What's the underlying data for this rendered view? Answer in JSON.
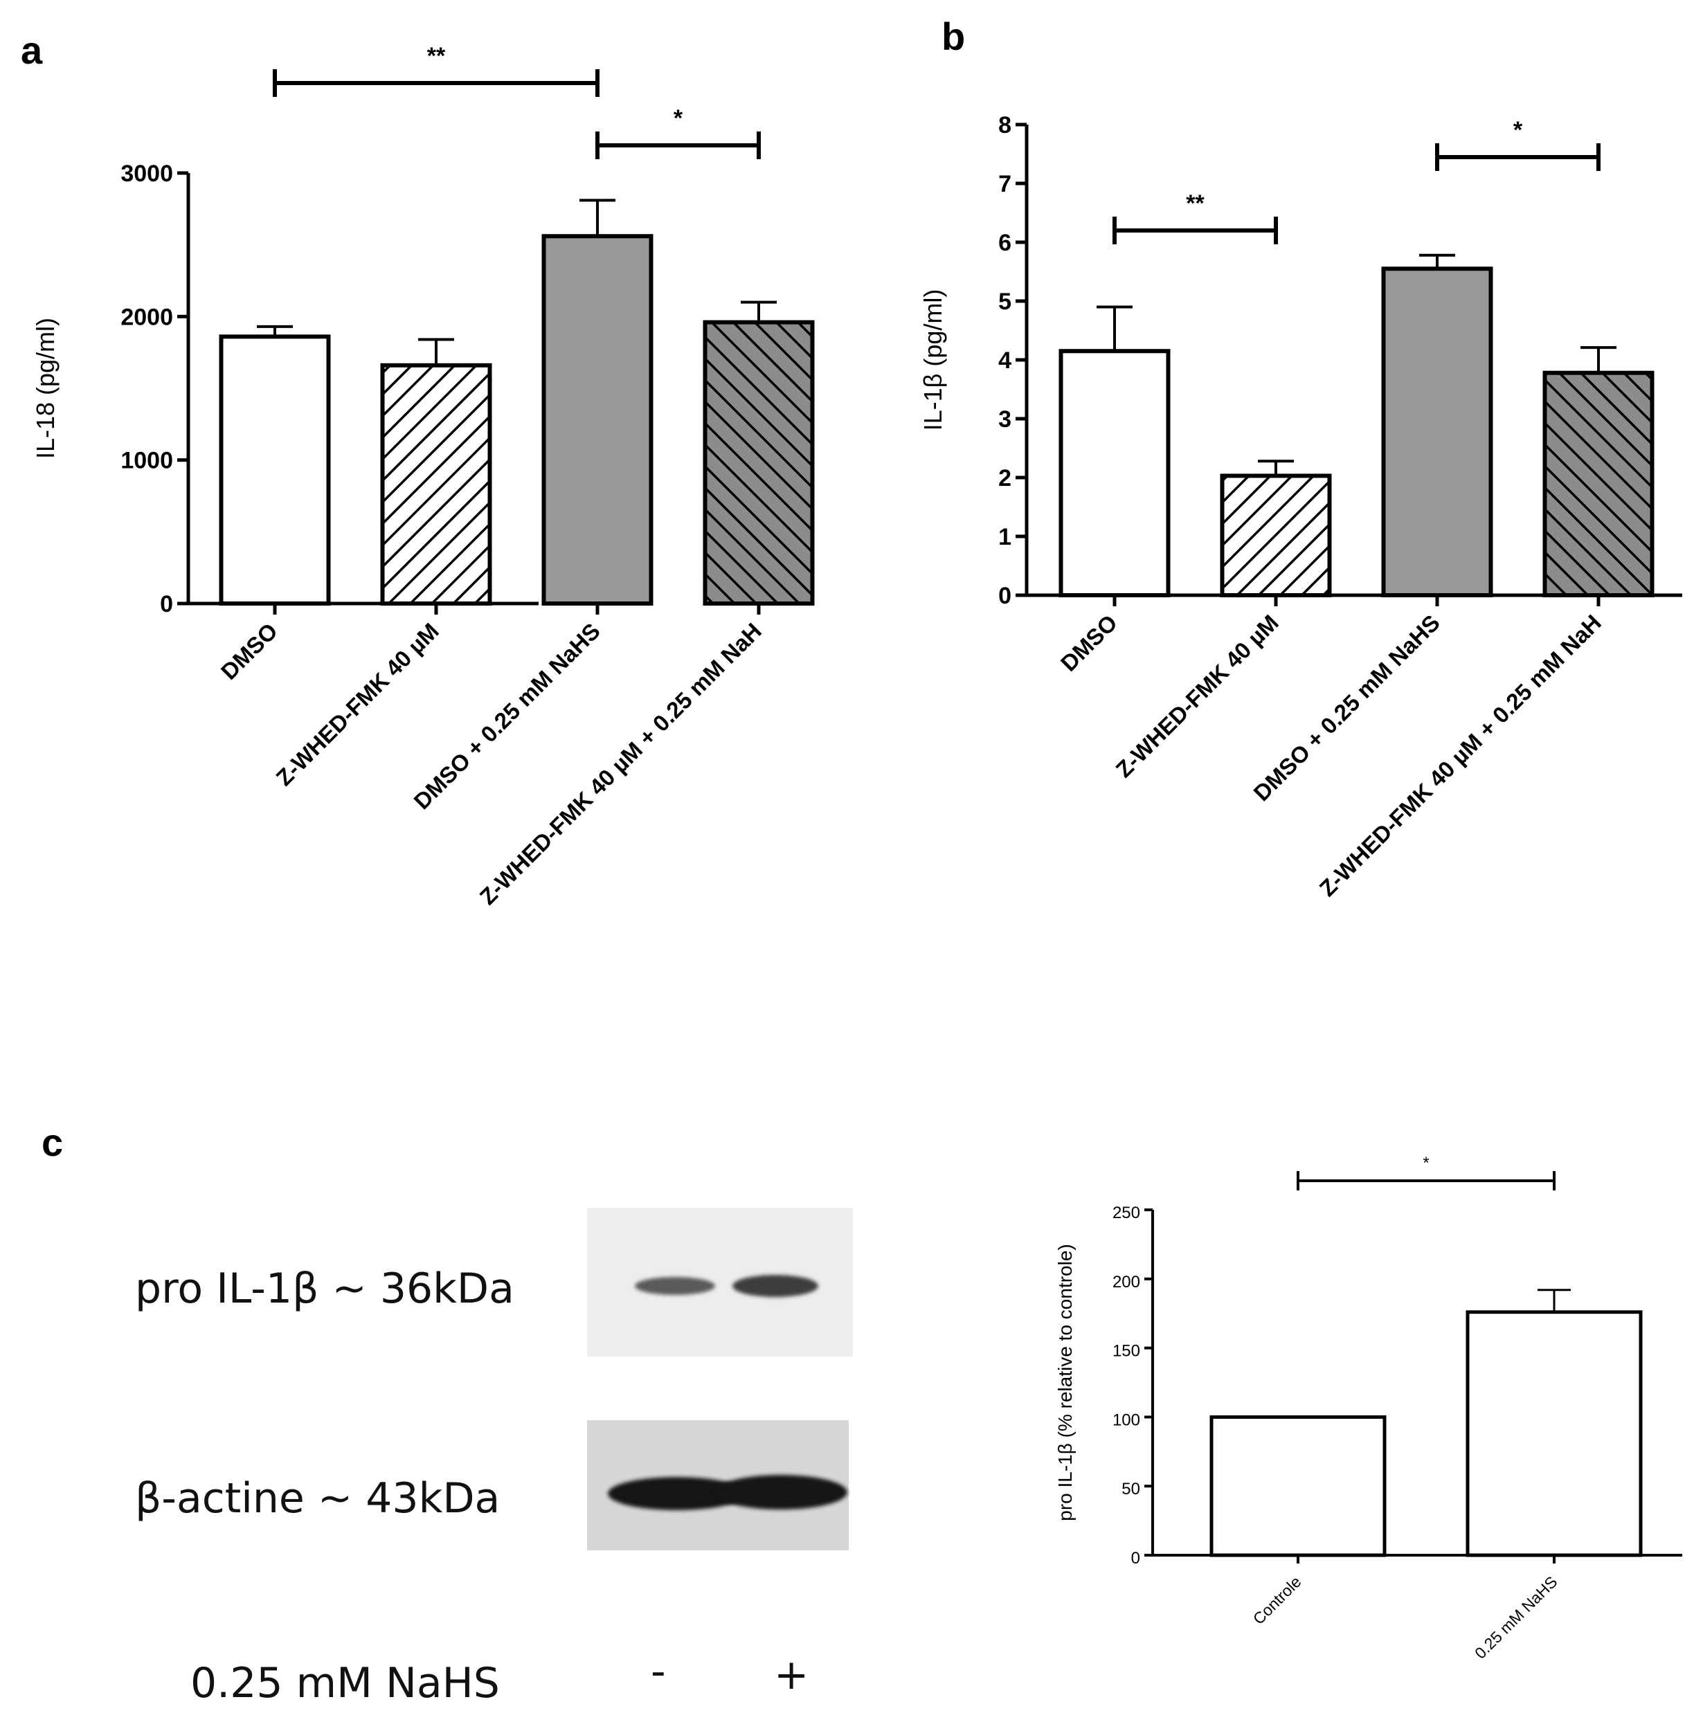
{
  "panels": {
    "a": "a",
    "b": "b",
    "c": "c"
  },
  "chart_data": [
    {
      "id": "a",
      "type": "bar",
      "ylabel": "IL-18 (pg/ml)",
      "ylim": [
        0,
        3000
      ],
      "yticks": [
        0,
        1000,
        2000,
        3000
      ],
      "categories": [
        "DMSO",
        "Z-WHED-FMK 40 µM",
        "DMSO + 0.25 mM NaHS",
        "Z-WHED-FMK 40 µM + 0.25 mM NaH"
      ],
      "values": [
        1860,
        1660,
        2560,
        1960
      ],
      "errors": [
        70,
        180,
        250,
        140
      ],
      "fills": [
        "white",
        "hatch-back",
        "#999999",
        "hatch-forward-dark"
      ],
      "significance": [
        {
          "from": 0,
          "to": 2,
          "label": "**"
        },
        {
          "from": 2,
          "to": 3,
          "label": "*"
        }
      ]
    },
    {
      "id": "b",
      "type": "bar",
      "ylabel": "IL-1β (pg/ml)",
      "ylim": [
        0,
        8
      ],
      "yticks": [
        0,
        1,
        2,
        3,
        4,
        5,
        6,
        7,
        8
      ],
      "categories": [
        "DMSO",
        "Z-WHED-FMK 40 µM",
        "DMSO + 0.25 mM NaHS",
        "Z-WHED-FMK 40 µM + 0.25 mM NaH"
      ],
      "values": [
        4.15,
        2.03,
        5.55,
        3.78
      ],
      "errors": [
        0.75,
        0.25,
        0.23,
        0.43
      ],
      "fills": [
        "white",
        "hatch-back",
        "#999999",
        "hatch-forward-dark"
      ],
      "significance": [
        {
          "from": 0,
          "to": 1,
          "label": "**"
        },
        {
          "from": 2,
          "to": 3,
          "label": "*"
        }
      ]
    },
    {
      "id": "c",
      "type": "bar",
      "ylabel": "pro IL-1β (% relative to controle)",
      "ylim": [
        0,
        250
      ],
      "yticks": [
        0,
        50,
        100,
        150,
        200,
        250
      ],
      "categories": [
        "Controle",
        "0.25 mM NaHS"
      ],
      "values": [
        100,
        176
      ],
      "errors": [
        0,
        16
      ],
      "fills": [
        "white",
        "white"
      ],
      "significance": [
        {
          "from": 0,
          "to": 1,
          "label": "*"
        }
      ]
    }
  ],
  "blot": {
    "band1_label": "pro IL-1β ~ 36kDa",
    "band2_label": "β-actine ~ 43kDa",
    "treatment_label": "0.25 mM NaHS",
    "lane_minus": "-",
    "lane_plus": "+"
  }
}
